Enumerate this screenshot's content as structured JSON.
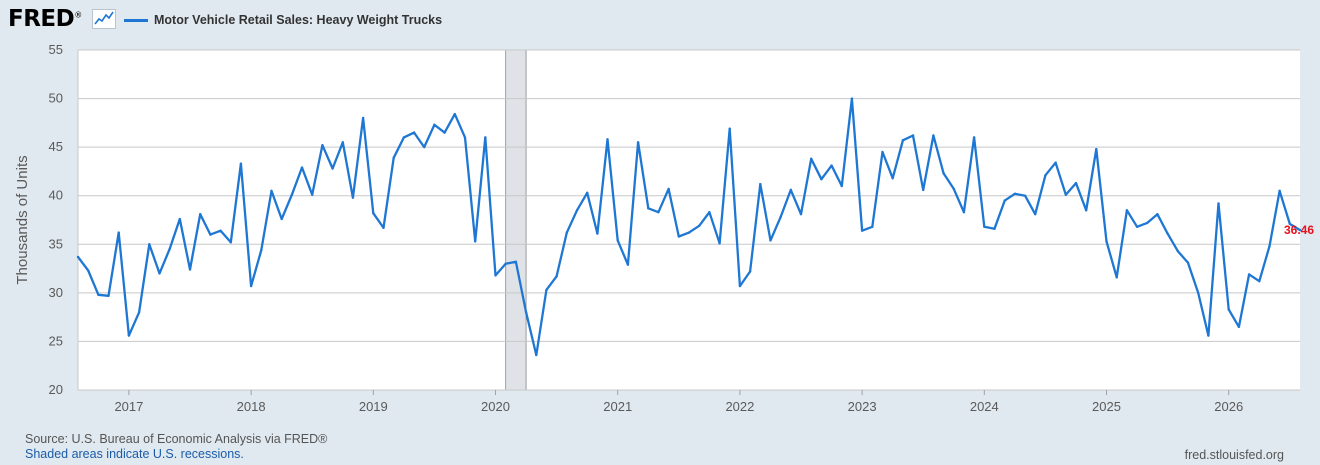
{
  "header": {
    "logo_text": "FRED",
    "logo_mark": "®",
    "legend_label": "Motor Vehicle Retail Sales: Heavy Weight Trucks"
  },
  "footer": {
    "source": "Source: U.S. Bureau of Economic Analysis via FRED®",
    "note": "Shaded areas indicate U.S. recessions.",
    "url": "fred.stlouisfed.org"
  },
  "colors": {
    "line": "#1f77d4",
    "recession": "#dfe3e8",
    "last_value": "#e8101c"
  },
  "chart_data": {
    "type": "line",
    "ylabel": "Thousands of Units",
    "ylim": [
      20,
      55
    ],
    "yticks": [
      20,
      25,
      30,
      35,
      40,
      45,
      50,
      55
    ],
    "xlim": [
      "2016-08",
      "2026-08"
    ],
    "xticks": [
      "2017",
      "2018",
      "2019",
      "2020",
      "2021",
      "2022",
      "2023",
      "2024",
      "2025",
      "2026"
    ],
    "grid": true,
    "legend_position": "top",
    "recessions": [
      {
        "start": "2020-02",
        "end": "2020-04"
      }
    ],
    "last_value_label": "36.46",
    "series": [
      {
        "name": "Motor Vehicle Retail Sales: Heavy Weight Trucks",
        "x": [
          "2016-08",
          "2016-09",
          "2016-10",
          "2016-11",
          "2016-12",
          "2017-01",
          "2017-02",
          "2017-03",
          "2017-04",
          "2017-05",
          "2017-06",
          "2017-07",
          "2017-08",
          "2017-09",
          "2017-10",
          "2017-11",
          "2017-12",
          "2018-01",
          "2018-02",
          "2018-03",
          "2018-04",
          "2018-05",
          "2018-06",
          "2018-07",
          "2018-08",
          "2018-09",
          "2018-10",
          "2018-11",
          "2018-12",
          "2019-01",
          "2019-02",
          "2019-03",
          "2019-04",
          "2019-05",
          "2019-06",
          "2019-07",
          "2019-08",
          "2019-09",
          "2019-10",
          "2019-11",
          "2019-12",
          "2020-01",
          "2020-02",
          "2020-03",
          "2020-04",
          "2020-05",
          "2020-06",
          "2020-07",
          "2020-08",
          "2020-09",
          "2020-10",
          "2020-11",
          "2020-12",
          "2021-01",
          "2021-02",
          "2021-03",
          "2021-04",
          "2021-05",
          "2021-06",
          "2021-07",
          "2021-08",
          "2021-09",
          "2021-10",
          "2021-11",
          "2021-12",
          "2022-01",
          "2022-02",
          "2022-03",
          "2022-04",
          "2022-05",
          "2022-06",
          "2022-07",
          "2022-08",
          "2022-09",
          "2022-10",
          "2022-11",
          "2022-12",
          "2023-01",
          "2023-02",
          "2023-03",
          "2023-04",
          "2023-05",
          "2023-06",
          "2023-07",
          "2023-08",
          "2023-09",
          "2023-10",
          "2023-11",
          "2023-12",
          "2024-01",
          "2024-02",
          "2024-03",
          "2024-04",
          "2024-05",
          "2024-06",
          "2024-07",
          "2024-08",
          "2024-09",
          "2024-10",
          "2024-11",
          "2024-12",
          "2025-01",
          "2025-02",
          "2025-03",
          "2025-04",
          "2025-05",
          "2025-06",
          "2025-07",
          "2025-08",
          "2025-09",
          "2025-10",
          "2025-11",
          "2025-12",
          "2026-01",
          "2026-02",
          "2026-03",
          "2026-04",
          "2026-05",
          "2026-06",
          "2026-07",
          "2026-08"
        ],
        "values": [
          33.7,
          32.3,
          29.8,
          29.7,
          36.2,
          25.6,
          28.0,
          35.0,
          32.0,
          34.5,
          37.6,
          32.4,
          38.1,
          36.0,
          36.4,
          35.2,
          43.3,
          30.7,
          34.4,
          40.5,
          37.6,
          40.1,
          42.9,
          40.1,
          45.2,
          42.8,
          45.5,
          39.8,
          48.0,
          38.2,
          36.7,
          43.9,
          46.0,
          46.5,
          45.0,
          47.3,
          46.5,
          48.4,
          46.0,
          35.3,
          46.0,
          31.8,
          33.0,
          33.2,
          28.0,
          23.6,
          30.3,
          31.7,
          36.2,
          38.5,
          40.3,
          36.1,
          45.8,
          35.4,
          32.9,
          45.5,
          38.7,
          38.3,
          40.7,
          35.8,
          36.2,
          36.9,
          38.3,
          35.1,
          46.9,
          30.7,
          32.2,
          41.2,
          35.4,
          37.8,
          40.6,
          38.1,
          43.8,
          41.7,
          43.1,
          41.0,
          50.0,
          36.4,
          36.8,
          44.5,
          41.8,
          45.7,
          46.2,
          40.6,
          46.2,
          42.3,
          40.7,
          38.3,
          46.0,
          36.8,
          36.6,
          39.5,
          40.2,
          40.0,
          38.1,
          42.1,
          43.4,
          40.1,
          41.3,
          38.5,
          44.8,
          35.3,
          31.6,
          38.5,
          36.8,
          37.2,
          38.1,
          36.1,
          34.3,
          33.1,
          30.0,
          25.6,
          39.2,
          28.3,
          26.5,
          31.9,
          31.2,
          34.8,
          40.5,
          37.1,
          36.46
        ]
      }
    ]
  }
}
